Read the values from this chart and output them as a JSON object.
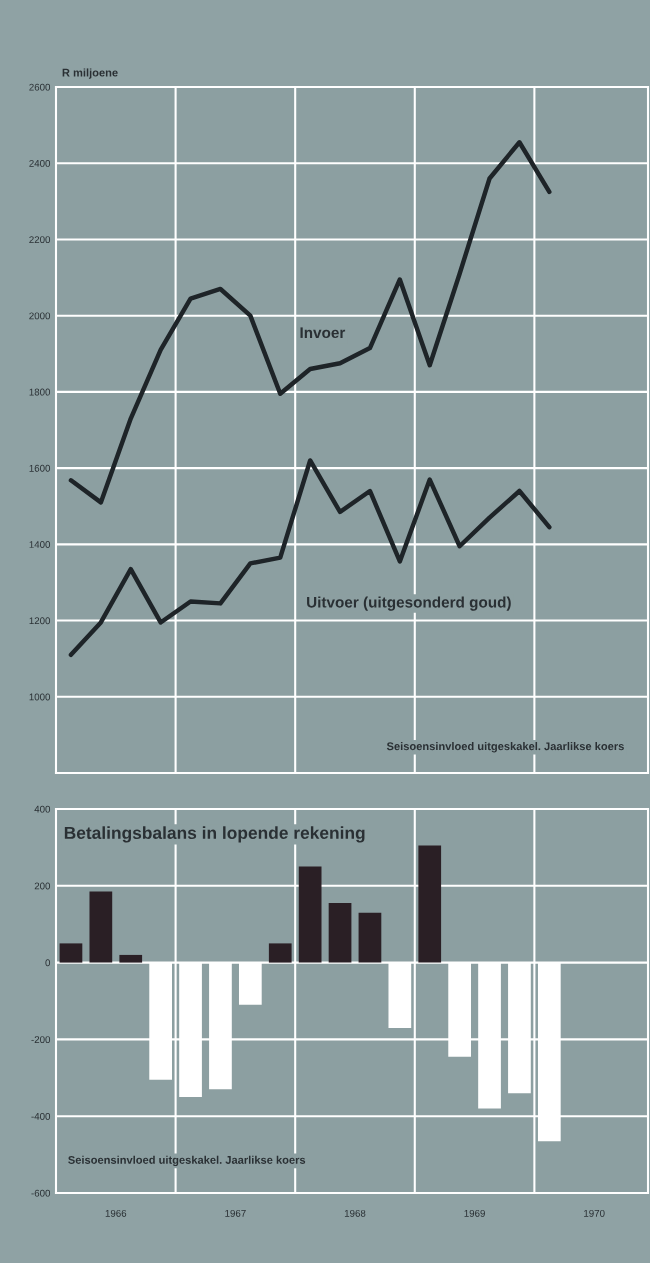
{
  "chart_data": [
    {
      "type": "line",
      "ylabel": "R miljoene",
      "x": [
        1966.125,
        1966.375,
        1966.625,
        1966.875,
        1967.125,
        1967.375,
        1967.625,
        1967.875,
        1968.125,
        1968.375,
        1968.625,
        1968.875,
        1969.125,
        1969.375,
        1969.625,
        1969.875,
        1970.125
      ],
      "xlim": [
        1966,
        1970.95
      ],
      "xticks": [
        {
          "value": 1967,
          "label": null
        },
        {
          "value": 1968,
          "label": null
        },
        {
          "value": 1969,
          "label": null
        },
        {
          "value": 1970,
          "label": null
        }
      ],
      "ylim": [
        800,
        2600
      ],
      "yticks": [
        1000,
        1200,
        1400,
        1600,
        1800,
        2000,
        2200,
        2400,
        2600
      ],
      "tick_labels": "y",
      "grid": true,
      "annotations": [
        "Seisoensinvloed uitgeskakel. Jaarlikse koers"
      ],
      "series": [
        {
          "name": "Invoer",
          "color": "#1e2428",
          "values": [
            1568,
            1510,
            1730,
            1910,
            2045,
            2070,
            2000,
            1795,
            1860,
            1875,
            1915,
            2095,
            1870,
            2110,
            2360,
            2455,
            2325
          ]
        },
        {
          "name": "Uitvoer (uitgesonderd goud)",
          "color": "#1e2428",
          "values": [
            1110,
            1195,
            1335,
            1195,
            1250,
            1245,
            1350,
            1365,
            1620,
            1485,
            1540,
            1355,
            1570,
            1395,
            1470,
            1540,
            1445
          ]
        }
      ]
    },
    {
      "type": "bar",
      "title": "Betalingsbalans in lopende rekening",
      "x": [
        1966.125,
        1966.375,
        1966.625,
        1966.875,
        1967.125,
        1967.375,
        1967.625,
        1967.875,
        1968.125,
        1968.375,
        1968.625,
        1968.875,
        1969.125,
        1969.375,
        1969.625,
        1969.875,
        1970.125
      ],
      "xlim": [
        1966,
        1970.95
      ],
      "xticks": [
        {
          "value": 1966.5,
          "label": "1966"
        },
        {
          "value": 1967,
          "label": null
        },
        {
          "value": 1967.5,
          "label": "1967"
        },
        {
          "value": 1968,
          "label": null
        },
        {
          "value": 1968.5,
          "label": "1968"
        },
        {
          "value": 1969,
          "label": null
        },
        {
          "value": 1969.5,
          "label": "1969"
        },
        {
          "value": 1970,
          "label": null
        },
        {
          "value": 1970.5,
          "label": "1970"
        }
      ],
      "ylim": [
        -600,
        400
      ],
      "yticks": [
        -600,
        -400,
        -200,
        0,
        200,
        400
      ],
      "grid": true,
      "annotations": [
        "Seisoensinvloed uitgeskakel. Jaarlikse koers"
      ],
      "values": [
        50,
        185,
        20,
        -305,
        -350,
        -330,
        -110,
        50,
        250,
        155,
        130,
        -170,
        305,
        -245,
        -380,
        -340,
        -465
      ],
      "colors": [
        "#2a1f25",
        "#2a1f25",
        "#2a1f25",
        "#ffffff",
        "#ffffff",
        "#ffffff",
        "#ffffff",
        "#2a1f25",
        "#2a1f25",
        "#2a1f25",
        "#2a1f25",
        "#ffffff",
        "#2a1f25",
        "#ffffff",
        "#ffffff",
        "#ffffff",
        "#ffffff"
      ]
    }
  ]
}
